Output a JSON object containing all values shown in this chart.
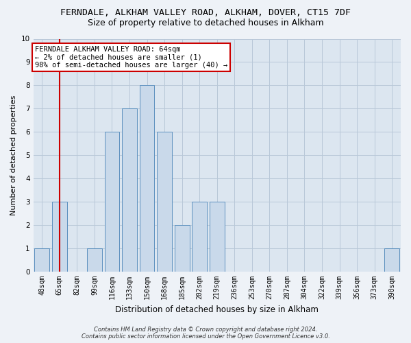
{
  "title": "FERNDALE, ALKHAM VALLEY ROAD, ALKHAM, DOVER, CT15 7DF",
  "subtitle": "Size of property relative to detached houses in Alkham",
  "xlabel": "Distribution of detached houses by size in Alkham",
  "ylabel": "Number of detached properties",
  "categories": [
    "48sqm",
    "65sqm",
    "82sqm",
    "99sqm",
    "116sqm",
    "133sqm",
    "150sqm",
    "168sqm",
    "185sqm",
    "202sqm",
    "219sqm",
    "236sqm",
    "253sqm",
    "270sqm",
    "287sqm",
    "304sqm",
    "322sqm",
    "339sqm",
    "356sqm",
    "373sqm",
    "390sqm"
  ],
  "values": [
    1,
    3,
    0,
    1,
    6,
    7,
    8,
    6,
    2,
    3,
    3,
    0,
    0,
    0,
    0,
    0,
    0,
    0,
    0,
    0,
    1
  ],
  "bar_color": "#c9d9ea",
  "bar_edge_color": "#5b8fbe",
  "highlight_index": 1,
  "highlight_line_color": "#cc0000",
  "ylim": [
    0,
    10
  ],
  "yticks": [
    0,
    1,
    2,
    3,
    4,
    5,
    6,
    7,
    8,
    9,
    10
  ],
  "annotation_title": "FERNDALE ALKHAM VALLEY ROAD: 64sqm",
  "annotation_line2": "← 2% of detached houses are smaller (1)",
  "annotation_line3": "98% of semi-detached houses are larger (40) →",
  "annotation_box_color": "#cc0000",
  "footer_line1": "Contains HM Land Registry data © Crown copyright and database right 2024.",
  "footer_line2": "Contains public sector information licensed under the Open Government Licence v3.0.",
  "bg_color": "#eef2f7",
  "plot_bg_color": "#dce6f0",
  "grid_color": "#b8c8d8",
  "title_fontsize": 9.5,
  "subtitle_fontsize": 9,
  "tick_fontsize": 7,
  "ylabel_fontsize": 8,
  "xlabel_fontsize": 8.5,
  "annotation_fontsize": 7.5,
  "footer_fontsize": 6
}
